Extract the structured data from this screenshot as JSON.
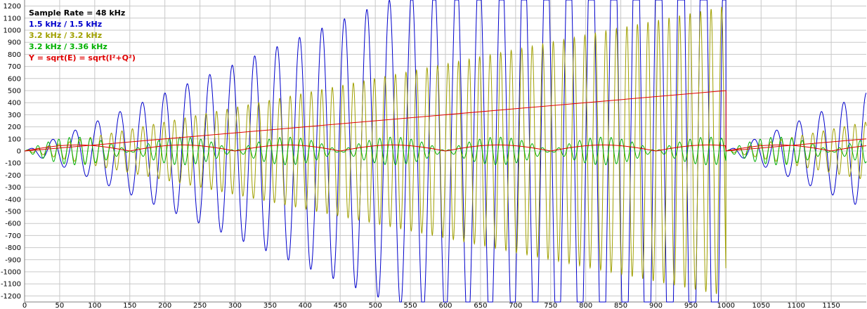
{
  "chart_data": {
    "type": "line",
    "title": "",
    "xlabel": "",
    "ylabel": "",
    "xlim": [
      0,
      1200
    ],
    "ylim": [
      -1250,
      1250
    ],
    "x_ticks": [
      0,
      50,
      100,
      150,
      200,
      250,
      300,
      350,
      400,
      450,
      500,
      550,
      600,
      650,
      700,
      750,
      800,
      850,
      900,
      950,
      1000,
      1050,
      1100,
      1150
    ],
    "y_ticks": [
      1200,
      1100,
      1000,
      900,
      800,
      700,
      600,
      500,
      400,
      300,
      200,
      100,
      0,
      -100,
      -200,
      -300,
      -400,
      -500,
      -600,
      -700,
      -800,
      -900,
      -1000,
      -1100,
      -1200
    ],
    "grid": true,
    "legend_position": "top-left",
    "legend": [
      {
        "label": "Sample Rate = 48 kHz",
        "color": "#000000"
      },
      {
        "label": "1.5 kHz / 1.5 kHz",
        "color": "#0000cc"
      },
      {
        "label": "3.2 kHz / 3.2 kHz",
        "color": "#a0a000"
      },
      {
        "label": "3.2 kHz / 3.36 kHz",
        "color": "#00b000"
      },
      {
        "label": "Y = sqrt(E) = sqrt(I²+Q²)",
        "color": "#e00000"
      }
    ],
    "series": [
      {
        "color": "#0000cc",
        "frequency_khz": 1.5,
        "sample_rate_khz": 48,
        "envelope": {
          "kind": "linear-ramp",
          "slope_per_sample": 2.4
        },
        "reset_at_sample": 1000,
        "x_range": [
          0,
          1200
        ]
      },
      {
        "color": "#a0a000",
        "frequency_khz": 3.2,
        "sample_rate_khz": 48,
        "envelope": {
          "kind": "linear-ramp",
          "slope_per_sample": 1.2
        },
        "reset_at_sample": 1000,
        "x_range": [
          0,
          1200
        ]
      },
      {
        "color": "#00b000",
        "frequency_khz": 3.2,
        "sample_rate_khz": 48,
        "envelope": {
          "kind": "beat",
          "peak": 115,
          "beat_frequency_khz": 0.16
        },
        "reset_at_sample": 1000,
        "x_range": [
          0,
          1200
        ]
      },
      {
        "color": "#e00000",
        "envelope": {
          "kind": "linear-ramp",
          "points": [
            [
              0,
              0
            ],
            [
              1000,
              500
            ],
            [
              1000,
              0
            ],
            [
              1200,
              100
            ]
          ]
        }
      },
      {
        "color": "#e00000",
        "envelope": {
          "kind": "beat-magnitude",
          "peak": 50,
          "beat_frequency_khz": 0.16
        }
      }
    ]
  }
}
